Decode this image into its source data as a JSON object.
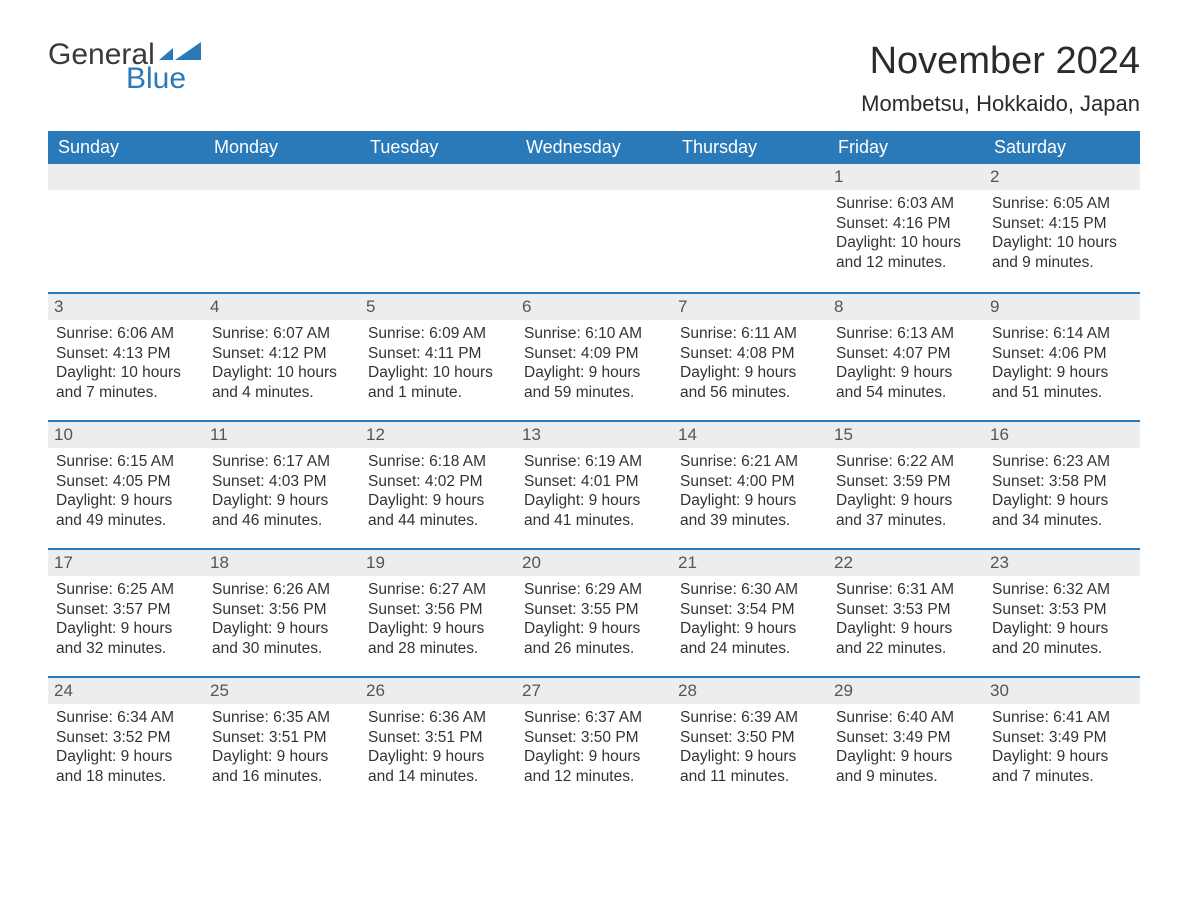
{
  "logo": {
    "top": "General",
    "bottom": "Blue"
  },
  "title": "November 2024",
  "location": "Mombetsu, Hokkaido, Japan",
  "colors": {
    "header_bg": "#2a7ab9",
    "header_text": "#ffffff",
    "daynum_bg": "#ededed",
    "daynum_text": "#555555",
    "week_divider": "#2a7ab9",
    "body_text": "#333333",
    "background": "#ffffff",
    "logo_general": "#3a3a3a",
    "logo_blue": "#2a7ab9"
  },
  "daynames": [
    "Sunday",
    "Monday",
    "Tuesday",
    "Wednesday",
    "Thursday",
    "Friday",
    "Saturday"
  ],
  "weeks": [
    [
      null,
      null,
      null,
      null,
      null,
      {
        "n": "1",
        "sunrise": "Sunrise: 6:03 AM",
        "sunset": "Sunset: 4:16 PM",
        "dl1": "Daylight: 10 hours",
        "dl2": "and 12 minutes."
      },
      {
        "n": "2",
        "sunrise": "Sunrise: 6:05 AM",
        "sunset": "Sunset: 4:15 PM",
        "dl1": "Daylight: 10 hours",
        "dl2": "and 9 minutes."
      }
    ],
    [
      {
        "n": "3",
        "sunrise": "Sunrise: 6:06 AM",
        "sunset": "Sunset: 4:13 PM",
        "dl1": "Daylight: 10 hours",
        "dl2": "and 7 minutes."
      },
      {
        "n": "4",
        "sunrise": "Sunrise: 6:07 AM",
        "sunset": "Sunset: 4:12 PM",
        "dl1": "Daylight: 10 hours",
        "dl2": "and 4 minutes."
      },
      {
        "n": "5",
        "sunrise": "Sunrise: 6:09 AM",
        "sunset": "Sunset: 4:11 PM",
        "dl1": "Daylight: 10 hours",
        "dl2": "and 1 minute."
      },
      {
        "n": "6",
        "sunrise": "Sunrise: 6:10 AM",
        "sunset": "Sunset: 4:09 PM",
        "dl1": "Daylight: 9 hours",
        "dl2": "and 59 minutes."
      },
      {
        "n": "7",
        "sunrise": "Sunrise: 6:11 AM",
        "sunset": "Sunset: 4:08 PM",
        "dl1": "Daylight: 9 hours",
        "dl2": "and 56 minutes."
      },
      {
        "n": "8",
        "sunrise": "Sunrise: 6:13 AM",
        "sunset": "Sunset: 4:07 PM",
        "dl1": "Daylight: 9 hours",
        "dl2": "and 54 minutes."
      },
      {
        "n": "9",
        "sunrise": "Sunrise: 6:14 AM",
        "sunset": "Sunset: 4:06 PM",
        "dl1": "Daylight: 9 hours",
        "dl2": "and 51 minutes."
      }
    ],
    [
      {
        "n": "10",
        "sunrise": "Sunrise: 6:15 AM",
        "sunset": "Sunset: 4:05 PM",
        "dl1": "Daylight: 9 hours",
        "dl2": "and 49 minutes."
      },
      {
        "n": "11",
        "sunrise": "Sunrise: 6:17 AM",
        "sunset": "Sunset: 4:03 PM",
        "dl1": "Daylight: 9 hours",
        "dl2": "and 46 minutes."
      },
      {
        "n": "12",
        "sunrise": "Sunrise: 6:18 AM",
        "sunset": "Sunset: 4:02 PM",
        "dl1": "Daylight: 9 hours",
        "dl2": "and 44 minutes."
      },
      {
        "n": "13",
        "sunrise": "Sunrise: 6:19 AM",
        "sunset": "Sunset: 4:01 PM",
        "dl1": "Daylight: 9 hours",
        "dl2": "and 41 minutes."
      },
      {
        "n": "14",
        "sunrise": "Sunrise: 6:21 AM",
        "sunset": "Sunset: 4:00 PM",
        "dl1": "Daylight: 9 hours",
        "dl2": "and 39 minutes."
      },
      {
        "n": "15",
        "sunrise": "Sunrise: 6:22 AM",
        "sunset": "Sunset: 3:59 PM",
        "dl1": "Daylight: 9 hours",
        "dl2": "and 37 minutes."
      },
      {
        "n": "16",
        "sunrise": "Sunrise: 6:23 AM",
        "sunset": "Sunset: 3:58 PM",
        "dl1": "Daylight: 9 hours",
        "dl2": "and 34 minutes."
      }
    ],
    [
      {
        "n": "17",
        "sunrise": "Sunrise: 6:25 AM",
        "sunset": "Sunset: 3:57 PM",
        "dl1": "Daylight: 9 hours",
        "dl2": "and 32 minutes."
      },
      {
        "n": "18",
        "sunrise": "Sunrise: 6:26 AM",
        "sunset": "Sunset: 3:56 PM",
        "dl1": "Daylight: 9 hours",
        "dl2": "and 30 minutes."
      },
      {
        "n": "19",
        "sunrise": "Sunrise: 6:27 AM",
        "sunset": "Sunset: 3:56 PM",
        "dl1": "Daylight: 9 hours",
        "dl2": "and 28 minutes."
      },
      {
        "n": "20",
        "sunrise": "Sunrise: 6:29 AM",
        "sunset": "Sunset: 3:55 PM",
        "dl1": "Daylight: 9 hours",
        "dl2": "and 26 minutes."
      },
      {
        "n": "21",
        "sunrise": "Sunrise: 6:30 AM",
        "sunset": "Sunset: 3:54 PM",
        "dl1": "Daylight: 9 hours",
        "dl2": "and 24 minutes."
      },
      {
        "n": "22",
        "sunrise": "Sunrise: 6:31 AM",
        "sunset": "Sunset: 3:53 PM",
        "dl1": "Daylight: 9 hours",
        "dl2": "and 22 minutes."
      },
      {
        "n": "23",
        "sunrise": "Sunrise: 6:32 AM",
        "sunset": "Sunset: 3:53 PM",
        "dl1": "Daylight: 9 hours",
        "dl2": "and 20 minutes."
      }
    ],
    [
      {
        "n": "24",
        "sunrise": "Sunrise: 6:34 AM",
        "sunset": "Sunset: 3:52 PM",
        "dl1": "Daylight: 9 hours",
        "dl2": "and 18 minutes."
      },
      {
        "n": "25",
        "sunrise": "Sunrise: 6:35 AM",
        "sunset": "Sunset: 3:51 PM",
        "dl1": "Daylight: 9 hours",
        "dl2": "and 16 minutes."
      },
      {
        "n": "26",
        "sunrise": "Sunrise: 6:36 AM",
        "sunset": "Sunset: 3:51 PM",
        "dl1": "Daylight: 9 hours",
        "dl2": "and 14 minutes."
      },
      {
        "n": "27",
        "sunrise": "Sunrise: 6:37 AM",
        "sunset": "Sunset: 3:50 PM",
        "dl1": "Daylight: 9 hours",
        "dl2": "and 12 minutes."
      },
      {
        "n": "28",
        "sunrise": "Sunrise: 6:39 AM",
        "sunset": "Sunset: 3:50 PM",
        "dl1": "Daylight: 9 hours",
        "dl2": "and 11 minutes."
      },
      {
        "n": "29",
        "sunrise": "Sunrise: 6:40 AM",
        "sunset": "Sunset: 3:49 PM",
        "dl1": "Daylight: 9 hours",
        "dl2": "and 9 minutes."
      },
      {
        "n": "30",
        "sunrise": "Sunrise: 6:41 AM",
        "sunset": "Sunset: 3:49 PM",
        "dl1": "Daylight: 9 hours",
        "dl2": "and 7 minutes."
      }
    ]
  ]
}
